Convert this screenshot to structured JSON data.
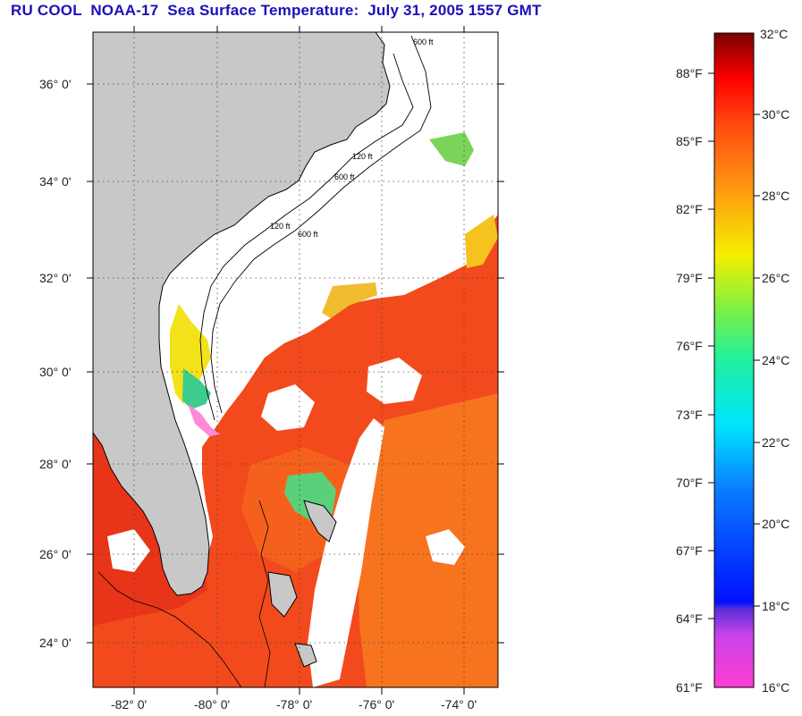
{
  "title": "RU COOL  NOAA-17  Sea Surface Temperature:  July 31, 2005 1557 GMT",
  "colors": {
    "title": "#1c10b8",
    "land": "#c8c8c8",
    "water_sst": "#f0421e",
    "cloud": "#ffffff"
  },
  "map": {
    "lat_labels": [
      "36° 0'",
      "34° 0'",
      "32° 0'",
      "30° 0'",
      "28° 0'",
      "26° 0'",
      "24° 0'"
    ],
    "lon_labels": [
      "-82° 0'",
      "-80° 0'",
      "-78° 0'",
      "-76° 0'",
      "-74° 0'"
    ],
    "isobath_labels": [
      "600 ft",
      "120 ft",
      "600 ft",
      "120 ft",
      "600 ft"
    ]
  },
  "colorbar": {
    "celsius_labels": [
      "32°C",
      "30°C",
      "28°C",
      "26°C",
      "24°C",
      "22°C",
      "20°C",
      "18°C",
      "16°C"
    ],
    "fahrenheit_labels": [
      "88°F",
      "85°F",
      "82°F",
      "79°F",
      "76°F",
      "73°F",
      "70°F",
      "67°F",
      "64°F",
      "61°F"
    ]
  }
}
